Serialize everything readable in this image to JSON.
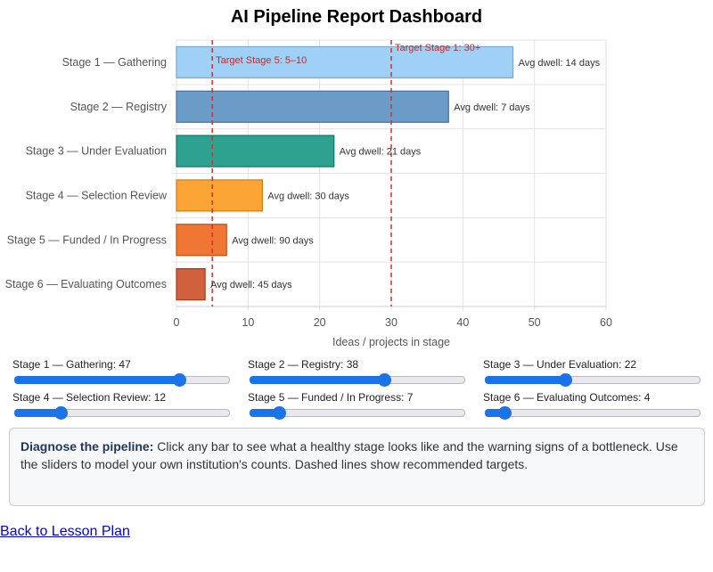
{
  "title": "AI Pipeline Report Dashboard",
  "chart_data": {
    "type": "bar",
    "orientation": "horizontal",
    "categories": [
      "Stage 1 — Gathering",
      "Stage 2 — Registry",
      "Stage 3 — Under Evaluation",
      "Stage 4 — Selection Review",
      "Stage 5 — Funded / In Progress",
      "Stage 6 — Evaluating Outcomes"
    ],
    "values": [
      47,
      38,
      22,
      12,
      7,
      4
    ],
    "bar_labels": [
      "Avg dwell: 14 days",
      "Avg dwell: 7 days",
      "Avg dwell: 21 days",
      "Avg dwell: 30 days",
      "Avg dwell: 90 days",
      "Avg dwell: 45 days"
    ],
    "colors": [
      "#9fd0f5",
      "#6b9bc7",
      "#2ea191",
      "#fba536",
      "#ef7733",
      "#d1603e"
    ],
    "xlabel": "Ideas / projects in stage",
    "ylabel": "",
    "xlim": [
      0,
      60
    ],
    "xticks": [
      "0",
      "10",
      "20",
      "30",
      "40",
      "50",
      "60"
    ],
    "grid": true,
    "targets": [
      {
        "value": 5,
        "label": "Target Stage 5: 5–10"
      },
      {
        "value": 30,
        "label": "Target Stage 1: 30+"
      }
    ],
    "target_color": "#d32f2f"
  },
  "sliders": [
    {
      "label": "Stage 1 — Gathering: 47",
      "value": 47,
      "max": 60
    },
    {
      "label": "Stage 2 — Registry: 38",
      "value": 38,
      "max": 60
    },
    {
      "label": "Stage 3 — Under Evaluation: 22",
      "value": 22,
      "max": 60
    },
    {
      "label": "Stage 4 — Selection Review: 12",
      "value": 12,
      "max": 60
    },
    {
      "label": "Stage 5 — Funded / In Progress: 7",
      "value": 7,
      "max": 60
    },
    {
      "label": "Stage 6 — Evaluating Outcomes: 4",
      "value": 4,
      "max": 60
    }
  ],
  "info": {
    "heading": "Diagnose the pipeline:",
    "text": " Click any bar to see what a healthy stage looks like and the warning signs of a bottleneck. Use the sliders to model your own institution's counts. Dashed lines show recommended targets."
  },
  "back_link": "Back to Lesson Plan",
  "accent_color": "#1a73e8"
}
